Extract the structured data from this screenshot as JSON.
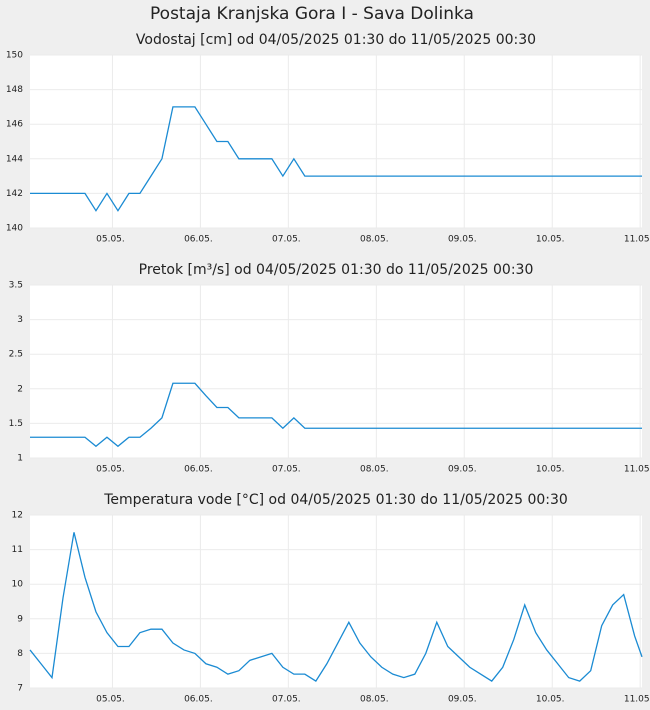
{
  "title": "Postaja Kranjska Gora I - Sava Dolinka",
  "chart_data": [
    {
      "type": "line",
      "title": "Vodostaj [cm] od 04/05/2025 01:30 do 11/05/2025 00:30",
      "color": "#1b8bd3",
      "grid": true,
      "x": [
        4.0625,
        4.1875,
        4.3125,
        4.4375,
        4.5625,
        4.6875,
        4.8125,
        4.9375,
        5.0625,
        5.1875,
        5.3125,
        5.4375,
        5.5625,
        5.6875,
        5.8125,
        5.9375,
        6.0625,
        6.1875,
        6.3125,
        6.4375,
        6.5625,
        6.6875,
        6.8125,
        6.9375,
        7.0625,
        7.1875,
        7.3125,
        7.4375,
        7.5625,
        7.6875,
        7.8125,
        7.9375,
        8.0625,
        8.1875,
        8.3125,
        8.4375,
        8.5625,
        8.6875,
        8.8125,
        8.9375,
        9.0625,
        9.1875,
        9.3125,
        9.4375,
        9.5625,
        9.6875,
        9.8125,
        9.9375,
        10.0625,
        10.1875,
        10.3125,
        10.4375,
        10.5625,
        10.6875,
        10.8125,
        10.9375,
        11.0208
      ],
      "values": [
        142,
        142,
        142,
        142,
        142,
        142,
        141,
        142,
        141,
        142,
        142,
        143,
        144,
        147,
        147,
        147,
        146,
        145,
        145,
        144,
        144,
        144,
        144,
        143,
        144,
        143,
        143,
        143,
        143,
        143,
        143,
        143,
        143,
        143,
        143,
        143,
        143,
        143,
        143,
        143,
        143,
        143,
        143,
        143,
        143,
        143,
        143,
        143,
        143,
        143,
        143,
        143,
        143,
        143,
        143,
        143,
        143
      ],
      "xlim": [
        4.0625,
        11.0208
      ],
      "xticks": [
        {
          "value": 5,
          "label": "05.05."
        },
        {
          "value": 6,
          "label": "06.05."
        },
        {
          "value": 7,
          "label": "07.05."
        },
        {
          "value": 8,
          "label": "08.05."
        },
        {
          "value": 9,
          "label": "09.05."
        },
        {
          "value": 10,
          "label": "10.05."
        },
        {
          "value": 11,
          "label": "11.05."
        }
      ],
      "ylim": [
        140,
        150
      ],
      "yticks": [
        140,
        142,
        144,
        146,
        148,
        150
      ]
    },
    {
      "type": "line",
      "title": "Pretok [m³/s] od 04/05/2025 01:30 do 11/05/2025 00:30",
      "color": "#1b8bd3",
      "grid": true,
      "x": [
        4.0625,
        4.1875,
        4.3125,
        4.4375,
        4.5625,
        4.6875,
        4.8125,
        4.9375,
        5.0625,
        5.1875,
        5.3125,
        5.4375,
        5.5625,
        5.6875,
        5.8125,
        5.9375,
        6.0625,
        6.1875,
        6.3125,
        6.4375,
        6.5625,
        6.6875,
        6.8125,
        6.9375,
        7.0625,
        7.1875,
        7.3125,
        7.4375,
        7.5625,
        7.6875,
        7.8125,
        7.9375,
        8.0625,
        8.1875,
        8.3125,
        8.4375,
        8.5625,
        8.6875,
        8.8125,
        8.9375,
        9.0625,
        9.1875,
        9.3125,
        9.4375,
        9.5625,
        9.6875,
        9.8125,
        9.9375,
        10.0625,
        10.1875,
        10.3125,
        10.4375,
        10.5625,
        10.6875,
        10.8125,
        10.9375,
        11.0208
      ],
      "values": [
        1.3,
        1.3,
        1.3,
        1.3,
        1.3,
        1.3,
        1.17,
        1.3,
        1.17,
        1.3,
        1.3,
        1.43,
        1.58,
        2.08,
        2.08,
        2.08,
        1.9,
        1.73,
        1.73,
        1.58,
        1.58,
        1.58,
        1.58,
        1.43,
        1.58,
        1.43,
        1.43,
        1.43,
        1.43,
        1.43,
        1.43,
        1.43,
        1.43,
        1.43,
        1.43,
        1.43,
        1.43,
        1.43,
        1.43,
        1.43,
        1.43,
        1.43,
        1.43,
        1.43,
        1.43,
        1.43,
        1.43,
        1.43,
        1.43,
        1.43,
        1.43,
        1.43,
        1.43,
        1.43,
        1.43,
        1.43,
        1.43
      ],
      "xlim": [
        4.0625,
        11.0208
      ],
      "xticks": [
        {
          "value": 5,
          "label": "05.05."
        },
        {
          "value": 6,
          "label": "06.05."
        },
        {
          "value": 7,
          "label": "07.05."
        },
        {
          "value": 8,
          "label": "08.05."
        },
        {
          "value": 9,
          "label": "09.05."
        },
        {
          "value": 10,
          "label": "10.05."
        },
        {
          "value": 11,
          "label": "11.05."
        }
      ],
      "ylim": [
        1,
        3.5
      ],
      "yticks": [
        1,
        1.5,
        2,
        2.5,
        3,
        3.5
      ]
    },
    {
      "type": "line",
      "title": "Temperatura vode [°C] od 04/05/2025 01:30 do 11/05/2025 00:30",
      "color": "#1b8bd3",
      "grid": true,
      "x": [
        4.0625,
        4.1875,
        4.3125,
        4.4375,
        4.5625,
        4.6875,
        4.8125,
        4.9375,
        5.0625,
        5.1875,
        5.3125,
        5.4375,
        5.5625,
        5.6875,
        5.8125,
        5.9375,
        6.0625,
        6.1875,
        6.3125,
        6.4375,
        6.5625,
        6.6875,
        6.8125,
        6.9375,
        7.0625,
        7.1875,
        7.3125,
        7.4375,
        7.5625,
        7.6875,
        7.8125,
        7.9375,
        8.0625,
        8.1875,
        8.3125,
        8.4375,
        8.5625,
        8.6875,
        8.8125,
        8.9375,
        9.0625,
        9.1875,
        9.3125,
        9.4375,
        9.5625,
        9.6875,
        9.8125,
        9.9375,
        10.0625,
        10.1875,
        10.3125,
        10.4375,
        10.5625,
        10.6875,
        10.8125,
        10.9375,
        11.0208
      ],
      "values": [
        8.1,
        7.7,
        7.3,
        9.6,
        11.5,
        10.2,
        9.2,
        8.6,
        8.2,
        8.2,
        8.6,
        8.7,
        8.7,
        8.3,
        8.1,
        8.0,
        7.7,
        7.6,
        7.4,
        7.5,
        7.8,
        7.9,
        8.0,
        7.6,
        7.4,
        7.4,
        7.2,
        7.7,
        8.3,
        8.9,
        8.3,
        7.9,
        7.6,
        7.4,
        7.3,
        7.4,
        8.0,
        8.9,
        8.2,
        7.9,
        7.6,
        7.4,
        7.2,
        7.6,
        8.4,
        9.4,
        8.6,
        8.1,
        7.7,
        7.3,
        7.2,
        7.5,
        8.8,
        9.4,
        9.7,
        8.5,
        7.9
      ],
      "xlim": [
        4.0625,
        11.0208
      ],
      "xticks": [
        {
          "value": 5,
          "label": "05.05."
        },
        {
          "value": 6,
          "label": "06.05."
        },
        {
          "value": 7,
          "label": "07.05."
        },
        {
          "value": 8,
          "label": "08.05."
        },
        {
          "value": 9,
          "label": "09.05."
        },
        {
          "value": 10,
          "label": "10.05."
        },
        {
          "value": 11,
          "label": "11.05."
        }
      ],
      "ylim": [
        7,
        12
      ],
      "yticks": [
        7,
        8,
        9,
        10,
        11,
        12
      ]
    }
  ]
}
